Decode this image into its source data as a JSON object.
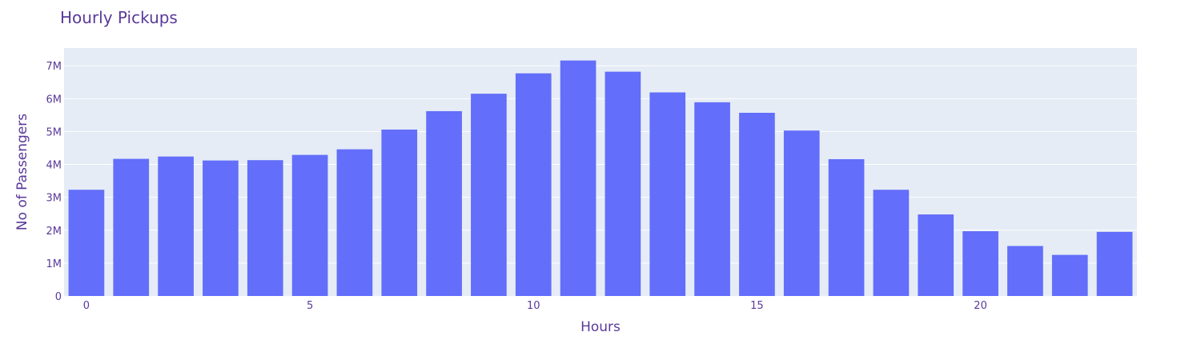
{
  "chart_data": {
    "type": "bar",
    "title": "Hourly Pickups",
    "xlabel": "Hours",
    "ylabel": "No of Passengers",
    "x": [
      0,
      1,
      2,
      3,
      4,
      5,
      6,
      7,
      8,
      9,
      10,
      11,
      12,
      13,
      14,
      15,
      16,
      17,
      18,
      19,
      20,
      21,
      22,
      23
    ],
    "values": [
      3230000,
      4170000,
      4240000,
      4120000,
      4130000,
      4290000,
      4460000,
      5060000,
      5620000,
      6150000,
      6770000,
      7160000,
      6820000,
      6190000,
      5890000,
      5570000,
      5030000,
      4160000,
      3230000,
      2480000,
      1970000,
      1520000,
      1250000,
      1950000
    ],
    "x_ticks": [
      0,
      5,
      10,
      15,
      20
    ],
    "x_tick_labels": [
      "0",
      "5",
      "10",
      "15",
      "20"
    ],
    "y_ticks": [
      0,
      1000000,
      2000000,
      3000000,
      4000000,
      5000000,
      6000000,
      7000000
    ],
    "y_tick_labels": [
      "0",
      "1M",
      "2M",
      "3M",
      "4M",
      "5M",
      "6M",
      "7M"
    ],
    "xlim": [
      -0.5,
      23.5
    ],
    "ylim": [
      0,
      7540000
    ],
    "grid": true,
    "bar_color": "#636efa",
    "plot_bg": "#e5ecf6",
    "text_color": "#5a3a9a"
  }
}
